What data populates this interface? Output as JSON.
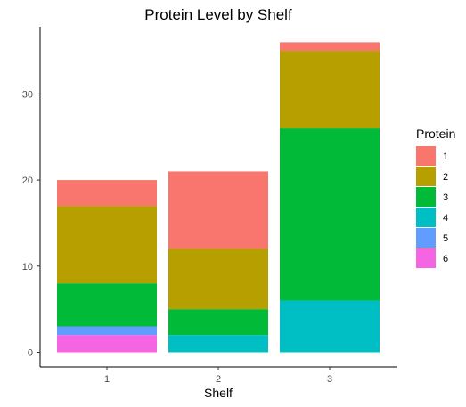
{
  "chart_data": {
    "type": "bar",
    "stacked": true,
    "title": "Protein Level by Shelf",
    "xlabel": "Shelf",
    "ylabel": "",
    "categories": [
      "1",
      "2",
      "3"
    ],
    "ylim": [
      0,
      36
    ],
    "yticks": [
      0,
      10,
      20,
      30
    ],
    "grid": false,
    "legend": {
      "title": "Protein",
      "placement": "right"
    },
    "series": [
      {
        "name": "1",
        "color": "#F8766D",
        "values": [
          3,
          9,
          1
        ]
      },
      {
        "name": "2",
        "color": "#B79F00",
        "values": [
          9,
          7,
          9
        ]
      },
      {
        "name": "3",
        "color": "#00BA38",
        "values": [
          5,
          3,
          20
        ]
      },
      {
        "name": "4",
        "color": "#00BFC4",
        "values": [
          0,
          2,
          6
        ]
      },
      {
        "name": "5",
        "color": "#619CFF",
        "values": [
          1,
          0,
          0
        ]
      },
      {
        "name": "6",
        "color": "#F564E3",
        "values": [
          2,
          0,
          0
        ]
      }
    ]
  }
}
